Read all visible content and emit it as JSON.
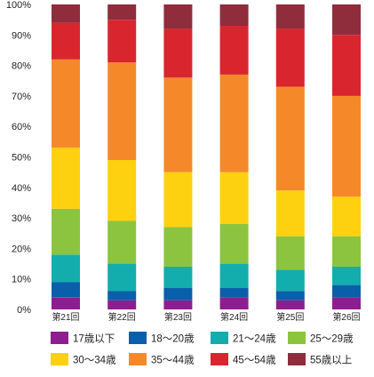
{
  "chart_data": {
    "type": "bar",
    "stacked": true,
    "normalized": true,
    "categories": [
      "第21回",
      "第22回",
      "第23回",
      "第24回",
      "第25回",
      "第26回"
    ],
    "y_tick_labels": [
      "0%",
      "10%",
      "20%",
      "30%",
      "40%",
      "50%",
      "60%",
      "70%",
      "80%",
      "90%",
      "100%"
    ],
    "ylim": [
      0,
      100
    ],
    "grid": false,
    "legend_position": "bottom",
    "series": [
      {
        "name": "17歳以下",
        "color": "#8e1e8f",
        "values": [
          4,
          3,
          3,
          4,
          3,
          4
        ]
      },
      {
        "name": "18～20歳",
        "color": "#0a5fab",
        "values": [
          5,
          3,
          4,
          3,
          3,
          4
        ]
      },
      {
        "name": "21～24歳",
        "color": "#13adae",
        "values": [
          9,
          9,
          7,
          8,
          7,
          6
        ]
      },
      {
        "name": "25～29歳",
        "color": "#8cc43f",
        "values": [
          15,
          14,
          13,
          13,
          11,
          10
        ]
      },
      {
        "name": "30～34歳",
        "color": "#fdd10f",
        "values": [
          20,
          20,
          18,
          17,
          15,
          13
        ]
      },
      {
        "name": "35～44歳",
        "color": "#f5892a",
        "values": [
          29,
          32,
          31,
          32,
          34,
          33
        ]
      },
      {
        "name": "45～54歳",
        "color": "#d9262e",
        "values": [
          12,
          14,
          16,
          16,
          19,
          20
        ]
      },
      {
        "name": "55歳以上",
        "color": "#8f2d3c",
        "values": [
          6,
          5,
          8,
          7,
          8,
          10
        ]
      }
    ]
  }
}
